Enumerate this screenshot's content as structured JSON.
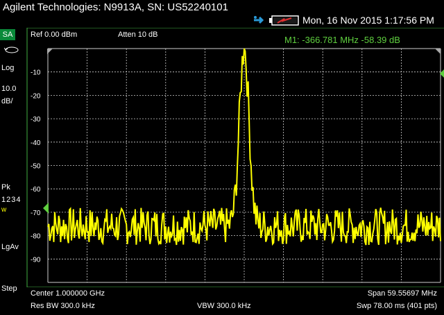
{
  "header": {
    "title": "Agilent Technologies: N9913A, SN: US52240101",
    "datetime": "Mon, 16 Nov 2015 1:17:56 PM"
  },
  "icons": {
    "usb": "usb-icon",
    "battery": "battery-icon",
    "sweep": "sweep-icon"
  },
  "left_panel": {
    "mode": "SA",
    "scale_type": "Log",
    "scale_value": "10.0",
    "scale_unit": "dB/",
    "detector": "Pk",
    "trace_numbers": "1234",
    "trace_state": "w",
    "averaging": "LgAv",
    "sweep_mode": "Step"
  },
  "display": {
    "ref_level": "Ref 0.00 dBm",
    "attenuation": "Atten 10 dB",
    "marker_readout": "M1:  -366.781 MHz  -58.39 dB",
    "y_labels": [
      "-10",
      "-20",
      "-30",
      "-40",
      "-50",
      "-60",
      "-70",
      "-80",
      "-90"
    ]
  },
  "footer": {
    "center": "Center 1.000000 GHz",
    "span": "Span 59.55697 MHz",
    "rbw": "Res BW 300.0 kHz",
    "vbw": "VBW 300.0 kHz",
    "sweep": "Swp 78.00 ms (401 pts)"
  },
  "colors": {
    "trace": "#ffff00",
    "marker_text": "#5fcf3f",
    "grid": "#cfcfcf",
    "frame": "#3fae3f",
    "mode_badge": "#0a8a3a"
  },
  "trace_data": {
    "ref_dbm": 0,
    "scale_db_per_div": 10,
    "divisions": 10,
    "center_ghz": 1.0,
    "span_mhz": 59.55697,
    "noise_floor_db": -76,
    "peak_db": 0,
    "peak_x_fraction": 0.5,
    "marker_x_fraction": 0.5
  }
}
